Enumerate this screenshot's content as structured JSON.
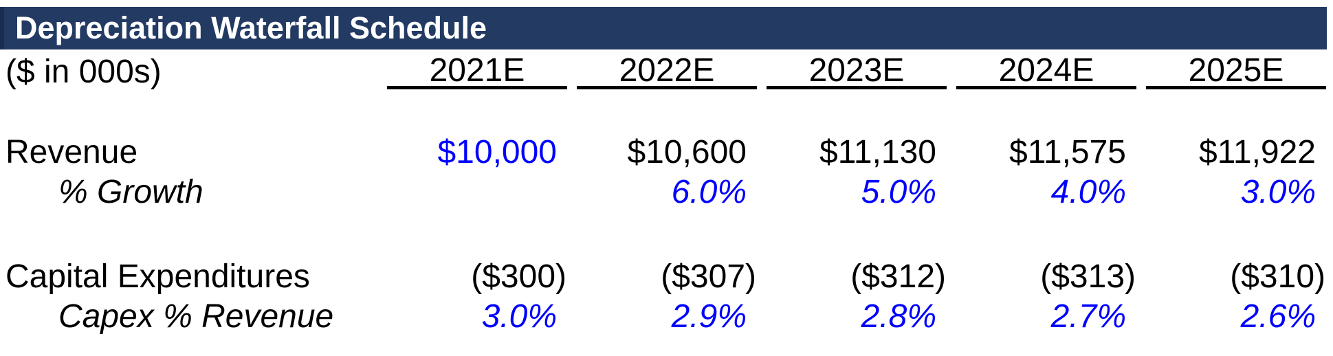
{
  "banner": {
    "title": "Depreciation Waterfall Schedule"
  },
  "table": {
    "units_label": "($ in 000s)",
    "columns": [
      "2021E",
      "2022E",
      "2023E",
      "2024E",
      "2025E"
    ],
    "rows": [
      {
        "label": "Revenue",
        "values": [
          "$10,000",
          "$10,600",
          "$11,130",
          "$11,575",
          "$11,922"
        ]
      },
      {
        "label": "% Growth",
        "values": [
          "",
          "6.0%",
          "5.0%",
          "4.0%",
          "3.0%"
        ]
      },
      {
        "label": "Capital Expenditures",
        "values": [
          "($300)",
          "($307)",
          "($312)",
          "($313)",
          "($310)"
        ]
      },
      {
        "label": "Capex % Revenue",
        "values": [
          "3.0%",
          "2.9%",
          "2.8%",
          "2.7%",
          "2.6%"
        ]
      }
    ]
  },
  "colors": {
    "banner_navy": "#233A63",
    "banner_edge": "#1A2C4F",
    "input_blue": "#0000FF",
    "text_black": "#000000",
    "title_white": "#FFFFFF"
  }
}
